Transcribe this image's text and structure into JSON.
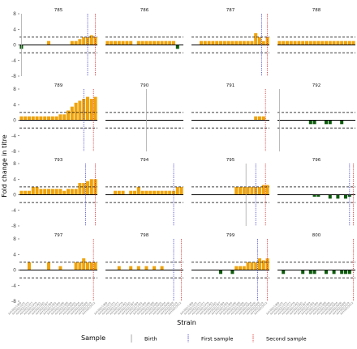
{
  "chart_data": {
    "type": "bar",
    "ylabel": "Fold change in titre",
    "xlabel": "Strain",
    "ylim": [
      -8,
      8
    ],
    "yticks": [
      -8,
      -4,
      0,
      4,
      8
    ],
    "threshold_lines": [
      2,
      -2
    ],
    "n_strains": 20,
    "strain_labels": [
      "A/H3N2/1968",
      "A/H3N2/1972",
      "A/H3N2/1975",
      "A/H3N2/1977",
      "A/H3N2/1979",
      "A/H3N2/1982",
      "A/H3N2/1985",
      "A/H3N2/1987",
      "A/H3N2/1989",
      "A/H3N2/1992",
      "A/H3N2/1994",
      "A/H3N2/1996",
      "A/H3N2/1998",
      "A/H3N2/2000",
      "A/H3N2/2002",
      "A/H3N2/2004",
      "A/H3N2/2006",
      "A/H3N2/2008",
      "A/H3N2/2010",
      "A/H3N2/2012"
    ],
    "colors": {
      "positive": "#f0a30a",
      "negative": "#0d5c0d",
      "birth": "#aaaaaa",
      "first": "#3a3ad6",
      "second": "#e0282a"
    },
    "legend": {
      "title": "Sample",
      "items": [
        {
          "key": "birth",
          "label": "Birth"
        },
        {
          "key": "first",
          "label": "First sample"
        },
        {
          "key": "second",
          "label": "Second sample"
        }
      ]
    },
    "panels": [
      {
        "id": "785",
        "values": [
          -1,
          0,
          0,
          0,
          0,
          0,
          0,
          1,
          0,
          0,
          0,
          0,
          0,
          1,
          1,
          1.5,
          2,
          2,
          2.5,
          2
        ],
        "birth": 0.5,
        "first": 17.5,
        "second": 19.5
      },
      {
        "id": "786",
        "values": [
          1,
          1,
          1,
          1,
          1,
          1,
          1,
          0,
          1,
          1,
          1,
          1,
          1,
          1,
          1,
          1,
          1,
          1,
          -1,
          0
        ],
        "birth": null,
        "first": null,
        "second": null
      },
      {
        "id": "787",
        "values": [
          0,
          0,
          1,
          1,
          1,
          1,
          1,
          1,
          1,
          1,
          1,
          1,
          1,
          1,
          1,
          1,
          3,
          2,
          1,
          2
        ],
        "birth": null,
        "first": 18,
        "second": 19.5
      },
      {
        "id": "788",
        "values": [
          1,
          1,
          1,
          1,
          1,
          1,
          1,
          1,
          1,
          1,
          1,
          1,
          1,
          1,
          1,
          1,
          1,
          1,
          1,
          1
        ],
        "birth": null,
        "first": null,
        "second": null
      },
      {
        "id": "789",
        "values": [
          1,
          1,
          1,
          1,
          1,
          1,
          1,
          1,
          1,
          1,
          1.5,
          1.5,
          2.5,
          3.5,
          4.5,
          5,
          5.5,
          6,
          5.5,
          6
        ],
        "birth": null,
        "first": 16.5,
        "second": 19
      },
      {
        "id": "790",
        "values": [
          0,
          0,
          0,
          0,
          0,
          0,
          0,
          0,
          0,
          0,
          0,
          0,
          0,
          0,
          0,
          0,
          0,
          0,
          0,
          0
        ],
        "birth": 10.5,
        "first": null,
        "second": null
      },
      {
        "id": "791",
        "values": [
          0,
          0,
          0,
          0,
          0,
          0,
          0,
          0,
          0,
          0,
          0,
          0,
          0,
          0,
          0,
          0,
          1,
          1,
          1,
          0
        ],
        "birth": null,
        "first": null,
        "second": 19
      },
      {
        "id": "792",
        "values": [
          0,
          0,
          0,
          0,
          0,
          0,
          0,
          0,
          -1,
          -1,
          0,
          0,
          -1,
          -1,
          0,
          0,
          -1,
          0,
          0,
          0
        ],
        "birth": 0.5,
        "first": null,
        "second": null
      },
      {
        "id": "793",
        "values": [
          1,
          1,
          1,
          2,
          2,
          1.5,
          1.5,
          1.5,
          1.5,
          1.5,
          1.5,
          1,
          1.5,
          1.5,
          1.5,
          3,
          3,
          3.5,
          4,
          4
        ],
        "birth": null,
        "first": 17,
        "second": 19.5
      },
      {
        "id": "794",
        "values": [
          0,
          0,
          1,
          1,
          1,
          0,
          1,
          1,
          2,
          1,
          1,
          1,
          1,
          1,
          1,
          1,
          1,
          1,
          2,
          2
        ],
        "birth": null,
        "first": 17.5,
        "second": null
      },
      {
        "id": "795",
        "values": [
          0,
          0,
          0,
          0,
          0,
          0,
          0,
          0,
          0,
          0,
          0,
          2,
          2,
          2,
          2,
          2,
          2,
          2,
          2.5,
          2.5
        ],
        "birth": 14,
        "first": 16.5,
        "second": 19
      },
      {
        "id": "796",
        "values": [
          0,
          0,
          0,
          0,
          0,
          0,
          0,
          0,
          0,
          -0.5,
          -0.5,
          0,
          0,
          -1,
          0,
          -1,
          0,
          -1,
          -0.5,
          0
        ],
        "birth": null,
        "first": 18.5,
        "second": 19.5
      },
      {
        "id": "797",
        "values": [
          0,
          0,
          2,
          0,
          0,
          0,
          0,
          2,
          0,
          0,
          1,
          0,
          0,
          0,
          2,
          2,
          3,
          2,
          2,
          2
        ],
        "birth": null,
        "first": null,
        "second": 19
      },
      {
        "id": "798",
        "values": [
          0,
          0,
          0,
          1,
          0,
          0,
          1,
          0,
          1,
          0,
          1,
          0,
          1,
          0,
          1,
          0,
          0,
          0,
          0,
          0
        ],
        "birth": null,
        "first": 17.5,
        "second": 19.5
      },
      {
        "id": "799",
        "values": [
          0,
          0,
          0,
          0,
          0,
          0,
          0,
          -1,
          0,
          0,
          -1,
          1,
          1,
          1,
          2,
          2,
          2,
          3,
          2.5,
          3
        ],
        "birth": null,
        "first": 17,
        "second": 19.5
      },
      {
        "id": "800",
        "values": [
          0,
          -1,
          0,
          0,
          0,
          0,
          -1,
          0,
          -1,
          -1,
          0,
          0,
          -1,
          0,
          -1,
          0,
          -1,
          -1,
          -1,
          0
        ],
        "birth": null,
        "first": null,
        "second": 19.5
      }
    ]
  }
}
